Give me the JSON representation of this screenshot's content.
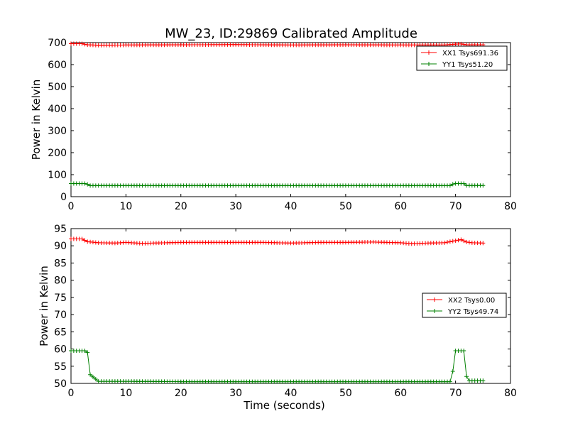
{
  "figure": {
    "title": "MW_23, ID:29869 Calibrated Amplitude"
  },
  "chart_data": [
    {
      "type": "line",
      "title": "MW_23, ID:29869 Calibrated Amplitude",
      "xlabel": "",
      "ylabel": "Power in Kelvin",
      "xlim": [
        0,
        80
      ],
      "ylim": [
        0,
        700
      ],
      "xticks": [
        0,
        10,
        20,
        30,
        40,
        50,
        60,
        70,
        80
      ],
      "yticks": [
        0,
        100,
        200,
        300,
        400,
        500,
        600,
        700
      ],
      "grid": false,
      "legend": "top-right",
      "series": [
        {
          "name": "XX1 Tsys691.36",
          "color": "#ff0000",
          "x": [
            0,
            2,
            3,
            5,
            10,
            20,
            30,
            40,
            50,
            60,
            68,
            70,
            71,
            72,
            75
          ],
          "y": [
            695,
            695,
            690,
            688,
            689,
            690,
            691,
            689,
            690,
            689,
            689,
            693,
            694,
            690,
            690
          ]
        },
        {
          "name": "YY1 Tsys51.20",
          "color": "#008000",
          "x": [
            0,
            2.8,
            3.3,
            10,
            20,
            30,
            40,
            50,
            60,
            69,
            69.7,
            71.5,
            72,
            75
          ],
          "y": [
            59.5,
            59.5,
            50.5,
            50.5,
            50.4,
            50.4,
            50.4,
            50.4,
            50.3,
            50.4,
            59.5,
            59.5,
            50.8,
            50.8
          ]
        }
      ]
    },
    {
      "type": "line",
      "title": "",
      "xlabel": "Time (seconds)",
      "ylabel": "Power in Kelvin",
      "xlim": [
        0,
        80
      ],
      "ylim": [
        50,
        95
      ],
      "xticks": [
        0,
        10,
        20,
        30,
        40,
        50,
        60,
        70,
        80
      ],
      "yticks": [
        50,
        55,
        60,
        65,
        70,
        75,
        80,
        85,
        90,
        95
      ],
      "grid": false,
      "legend": "center-right",
      "series": [
        {
          "name": "XX2 Tsys0.00",
          "color": "#ff0000",
          "x": [
            0,
            2,
            3,
            5,
            8,
            10,
            13,
            15,
            20,
            25,
            30,
            35,
            40,
            45,
            50,
            55,
            60,
            62,
            65,
            68,
            70,
            71,
            72,
            73,
            75
          ],
          "y": [
            92,
            92,
            91.2,
            90.9,
            90.8,
            91,
            90.7,
            90.8,
            91,
            91,
            91,
            91,
            90.8,
            91,
            91,
            91.1,
            90.9,
            90.6,
            90.8,
            90.9,
            91.5,
            91.8,
            91.1,
            90.9,
            90.8
          ]
        },
        {
          "name": "YY2 Tsys49.74",
          "color": "#008000",
          "x": [
            0,
            2.7,
            3.0,
            3.3,
            5,
            10,
            20,
            30,
            40,
            50,
            60,
            68,
            69,
            69.5,
            70,
            71.5,
            72,
            72.5,
            75
          ],
          "y": [
            59.5,
            59.5,
            59,
            52.8,
            50.6,
            50.6,
            50.5,
            50.5,
            50.5,
            50.5,
            50.5,
            50.5,
            50.5,
            53.5,
            59.5,
            59.5,
            52,
            50.8,
            50.8
          ]
        }
      ]
    }
  ]
}
